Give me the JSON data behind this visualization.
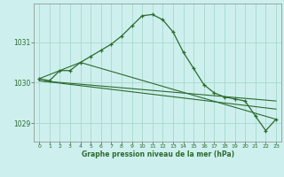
{
  "title": "Graphe pression niveau de la mer (hPa)",
  "bg_color": "#cdf0ee",
  "grid_color": "#a8d8cc",
  "line_color": "#2d6b2d",
  "marker_color": "#2d6b2d",
  "xlim": [
    -0.5,
    23.5
  ],
  "ylim": [
    1028.55,
    1031.95
  ],
  "yticks": [
    1029,
    1030,
    1031
  ],
  "xticks": [
    0,
    1,
    2,
    3,
    4,
    5,
    6,
    7,
    8,
    9,
    10,
    11,
    12,
    13,
    14,
    15,
    16,
    17,
    18,
    19,
    20,
    21,
    22,
    23
  ],
  "line1_x": [
    0,
    1,
    2,
    3,
    4,
    5,
    6,
    7,
    8,
    9,
    10,
    11,
    12,
    13,
    14,
    15,
    16,
    17,
    18,
    19,
    20,
    21,
    22,
    23
  ],
  "line1_y": [
    1030.1,
    1030.05,
    1030.3,
    1030.3,
    1030.5,
    1030.65,
    1030.8,
    1030.95,
    1031.15,
    1031.4,
    1031.65,
    1031.68,
    1031.55,
    1031.25,
    1030.75,
    1030.35,
    1029.95,
    1029.75,
    1029.65,
    1029.6,
    1029.55,
    1029.18,
    1028.82,
    1029.1
  ],
  "line2_x": [
    0,
    23
  ],
  "line2_y": [
    1030.05,
    1029.55
  ],
  "line3_x": [
    0,
    23
  ],
  "line3_y": [
    1030.05,
    1029.35
  ],
  "line4_x": [
    0,
    4,
    23
  ],
  "line4_y": [
    1030.1,
    1030.5,
    1029.1
  ]
}
